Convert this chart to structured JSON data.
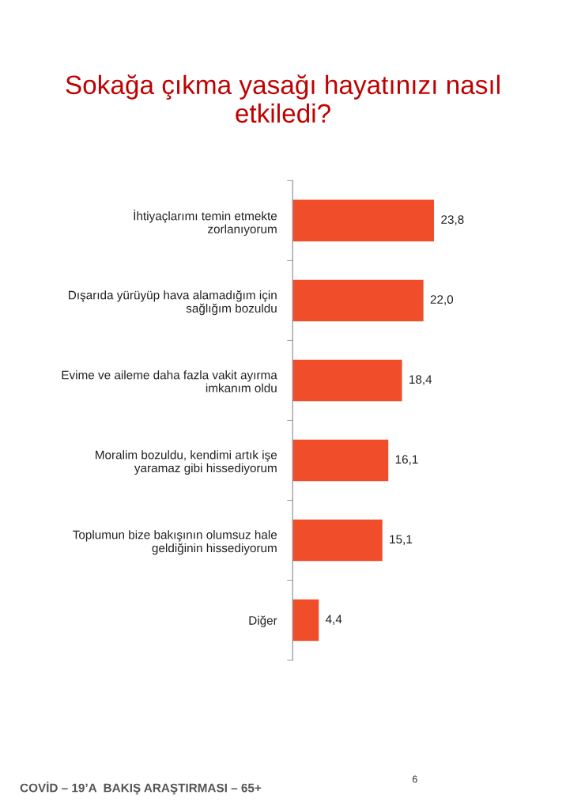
{
  "chart_data": {
    "type": "bar",
    "orientation": "horizontal",
    "title": "Sokağa çıkma yasağı hayatınızı nasıl\netkiledi?",
    "categories": [
      "İhtiyaçlarımı temin etmekte\nzorlanıyorum",
      "Dışarıda yürüyüp hava alamadığım için\nsağlığım bozuldu",
      "Evime ve aileme daha fazla vakit ayırma\nimkanım oldu",
      "Moralim bozuldu, kendimi artık işe\nyaramaz gibi hissediyorum",
      "Toplumun bize bakışının olumsuz hale\ngeldiğinin hissediyorum",
      "Diğer"
    ],
    "values": [
      23.8,
      22.0,
      18.4,
      16.1,
      15.1,
      4.4
    ],
    "value_labels": [
      "23,8",
      "22,0",
      "18,4",
      "16,1",
      "15,1",
      "4,4"
    ],
    "color": "#f04e2a",
    "annotations": [
      "COVİD – 19’A  BAKIŞ ARAŞTIRMASI – 65+",
      "6"
    ],
    "grid": false,
    "legend": false
  }
}
